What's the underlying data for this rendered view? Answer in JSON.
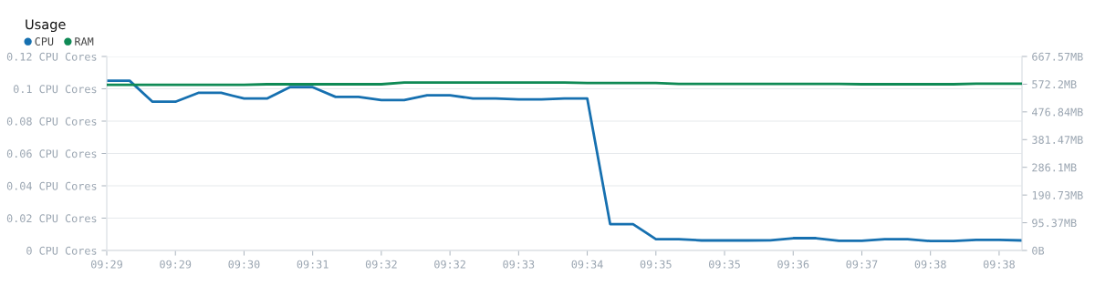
{
  "chart_data": {
    "type": "line",
    "title": "Usage",
    "categories": [
      "09:29",
      null,
      null,
      "09:29",
      null,
      null,
      "09:30",
      null,
      null,
      "09:31",
      null,
      null,
      "09:32",
      null,
      null,
      "09:32",
      null,
      null,
      "09:33",
      null,
      null,
      "09:34",
      null,
      null,
      "09:35",
      null,
      null,
      "09:35",
      null,
      null,
      "09:36",
      null,
      null,
      "09:37",
      null,
      null,
      "09:38",
      null,
      null,
      "09:38",
      null
    ],
    "series": [
      {
        "name": "CPU",
        "color": "#1670b0",
        "values": [
          0.105,
          0.105,
          0.092,
          0.092,
          0.0975,
          0.0975,
          0.094,
          0.094,
          0.101,
          0.101,
          0.095,
          0.095,
          0.093,
          0.093,
          0.096,
          0.096,
          0.094,
          0.094,
          0.0935,
          0.0935,
          0.094,
          0.094,
          0.0163,
          0.0163,
          0.007,
          0.007,
          0.0062,
          0.0062,
          0.0062,
          0.0063,
          0.0076,
          0.0076,
          0.006,
          0.006,
          0.007,
          0.007,
          0.0058,
          0.0058,
          0.0066,
          0.0066,
          0.0062
        ]
      },
      {
        "name": "RAM",
        "color": "#0f8a55",
        "axis": "y2",
        "values": [
          570,
          570,
          570,
          570,
          570,
          570,
          570,
          572,
          572,
          572,
          572,
          572,
          572,
          578,
          578,
          578,
          578,
          578,
          578,
          578,
          578,
          576,
          576,
          576,
          576,
          573,
          573,
          573,
          573,
          573,
          573,
          573,
          573,
          572,
          572,
          572,
          572,
          572,
          574,
          574,
          574
        ]
      }
    ],
    "ylim": [
      0,
      0.12
    ],
    "yticks": [
      {
        "value": 0,
        "label": "0 CPU Cores"
      },
      {
        "value": 0.02,
        "label": "0.02 CPU Cores"
      },
      {
        "value": 0.04,
        "label": "0.04 CPU Cores"
      },
      {
        "value": 0.06,
        "label": "0.06 CPU Cores"
      },
      {
        "value": 0.08,
        "label": "0.08 CPU Cores"
      },
      {
        "value": 0.1,
        "label": "0.1 CPU Cores"
      },
      {
        "value": 0.12,
        "label": "0.12 CPU Cores"
      }
    ],
    "y2lim": [
      0,
      667.57
    ],
    "y2ticks": [
      {
        "value": 0,
        "label": "0B"
      },
      {
        "value": 95.37,
        "label": "95.37MB"
      },
      {
        "value": 190.73,
        "label": "190.73MB"
      },
      {
        "value": 286.1,
        "label": "286.1MB"
      },
      {
        "value": 381.47,
        "label": "381.47MB"
      },
      {
        "value": 476.84,
        "label": "476.84MB"
      },
      {
        "value": 572.2,
        "label": "572.2MB"
      },
      {
        "value": 667.57,
        "label": "667.57MB"
      }
    ],
    "grid": "y",
    "legend": "top left",
    "marker": "none",
    "line_style": "solid"
  }
}
